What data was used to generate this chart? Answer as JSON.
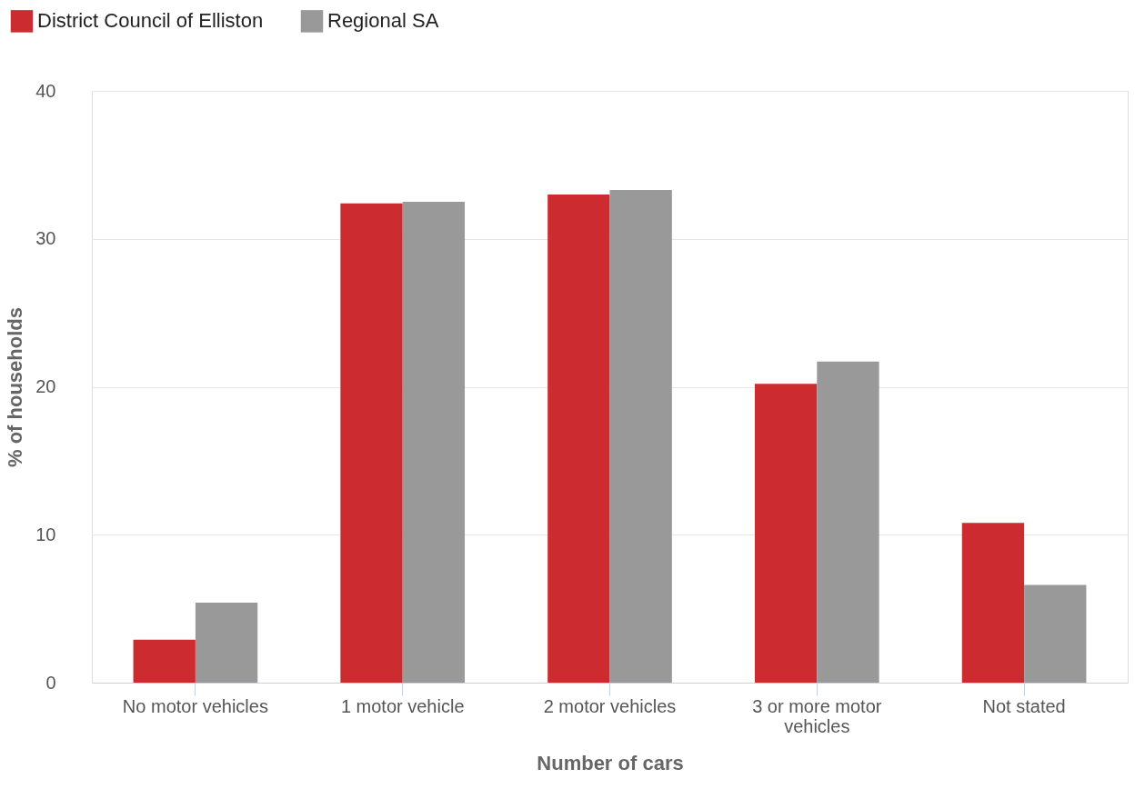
{
  "chart_data": {
    "type": "bar",
    "xlabel": "Number of cars",
    "ylabel": "% of households",
    "categories": [
      "No motor vehicles",
      "1 motor vehicle",
      "2 motor vehicles",
      "3 or more motor vehicles",
      "Not stated"
    ],
    "series": [
      {
        "name": "District Council of Elliston",
        "color": "#cc2c30",
        "values": [
          2.9,
          32.4,
          33.0,
          20.2,
          10.8
        ]
      },
      {
        "name": "Regional SA",
        "color": "#999999",
        "values": [
          5.4,
          32.5,
          33.3,
          21.7,
          6.6
        ]
      }
    ],
    "ylim": [
      0,
      40
    ],
    "yticks": [
      0,
      10,
      20,
      30,
      40
    ],
    "grid": "y",
    "legend": "top left"
  }
}
